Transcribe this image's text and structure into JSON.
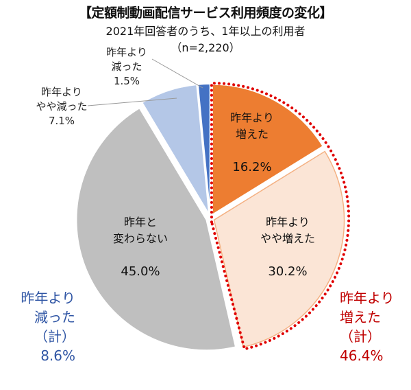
{
  "chart_data": {
    "type": "pie",
    "title": "【定額制動画配信サービス利用頻度の変化】",
    "subtitle": "2021年回答者のうち、1年以上の利用者",
    "sample": "（n=2,220）",
    "start": "12 o'clock, clockwise",
    "slices": [
      {
        "label_line1": "昨年より",
        "label_line2": "増えた",
        "value": 16.2,
        "value_label": "16.2%",
        "color": "#ED7D31"
      },
      {
        "label_line1": "昨年より",
        "label_line2": "やや増えた",
        "value": 30.2,
        "value_label": "30.2%",
        "color": "#FBE5D6",
        "stroke": "#F4B183"
      },
      {
        "label_line1": "昨年と",
        "label_line2": "変わらない",
        "value": 45.0,
        "value_label": "45.0%",
        "color": "#BFBFBF"
      },
      {
        "label_line1": "昨年より",
        "label_line2": "やや減った",
        "value": 7.1,
        "value_label": "7.1%",
        "color": "#B4C7E7"
      },
      {
        "label_line1": "昨年より",
        "label_line2": "減った",
        "value": 1.5,
        "value_label": "1.5%",
        "color": "#4472C4"
      }
    ],
    "groups": {
      "increased": {
        "line1": "昨年より",
        "line2": "増えた",
        "line3": "（計）",
        "value_label": "46.4%",
        "value": 46.4,
        "color": "#C00000",
        "outline_color": "#E00000"
      },
      "decreased": {
        "line1": "昨年より",
        "line2": "減った",
        "line3": "（計）",
        "value_label": "8.6%",
        "value": 8.6,
        "color": "#2F55A4"
      }
    }
  }
}
